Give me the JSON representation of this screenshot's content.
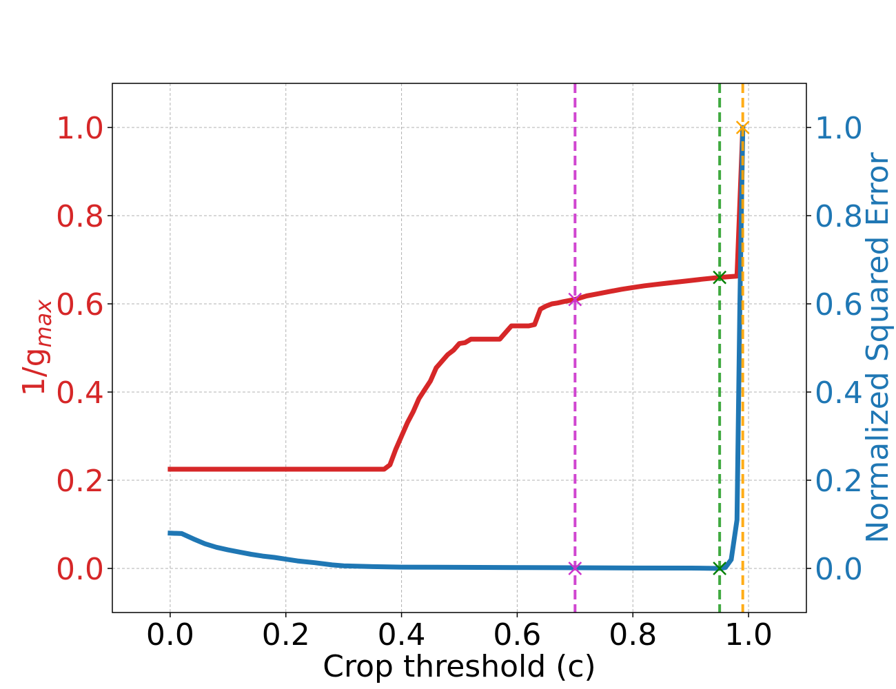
{
  "chart_data": {
    "type": "line",
    "xlabel": "Crop threshold (c)",
    "ylabel_left_base": "1/g",
    "ylabel_left_sub": "max",
    "ylabel_right": "Normalized Squared Error",
    "xlim": [
      -0.1,
      1.1
    ],
    "ylim_left": [
      -0.1,
      1.1
    ],
    "ylim_right": [
      -0.1,
      1.1
    ],
    "x_ticks": [
      "0.0",
      "0.2",
      "0.4",
      "0.6",
      "0.8",
      "1.0"
    ],
    "y_ticks_left": [
      "0.0",
      "0.2",
      "0.4",
      "0.6",
      "0.8",
      "1.0"
    ],
    "y_ticks_right": [
      "0.0",
      "0.2",
      "0.4",
      "0.6",
      "0.8",
      "1.0"
    ],
    "grid": true,
    "colors": {
      "left_axis": "#d62728",
      "right_axis": "#1f77b4",
      "magenta": "#cc33cc",
      "green": "#2ca02c",
      "orange": "#ffa500",
      "marker_green": "#008000"
    },
    "series": [
      {
        "axis": "left",
        "color": "#d62728",
        "x": [
          0.0,
          0.1,
          0.2,
          0.3,
          0.37,
          0.38,
          0.39,
          0.4,
          0.41,
          0.42,
          0.43,
          0.44,
          0.45,
          0.46,
          0.47,
          0.48,
          0.49,
          0.5,
          0.51,
          0.52,
          0.53,
          0.55,
          0.57,
          0.58,
          0.59,
          0.6,
          0.62,
          0.63,
          0.64,
          0.65,
          0.66,
          0.67,
          0.68,
          0.7,
          0.72,
          0.74,
          0.76,
          0.78,
          0.8,
          0.82,
          0.84,
          0.86,
          0.88,
          0.9,
          0.92,
          0.95,
          0.98,
          0.99
        ],
        "y": [
          0.225,
          0.225,
          0.225,
          0.225,
          0.225,
          0.235,
          0.27,
          0.3,
          0.33,
          0.355,
          0.385,
          0.405,
          0.425,
          0.455,
          0.47,
          0.485,
          0.495,
          0.51,
          0.512,
          0.52,
          0.52,
          0.52,
          0.52,
          0.535,
          0.55,
          0.55,
          0.55,
          0.553,
          0.588,
          0.595,
          0.6,
          0.602,
          0.605,
          0.61,
          0.618,
          0.623,
          0.628,
          0.633,
          0.637,
          0.641,
          0.644,
          0.647,
          0.65,
          0.653,
          0.656,
          0.66,
          0.663,
          1.0
        ]
      },
      {
        "axis": "right",
        "color": "#1f77b4",
        "x": [
          0.0,
          0.02,
          0.04,
          0.06,
          0.08,
          0.1,
          0.12,
          0.14,
          0.16,
          0.18,
          0.2,
          0.22,
          0.25,
          0.28,
          0.3,
          0.35,
          0.4,
          0.5,
          0.6,
          0.7,
          0.8,
          0.9,
          0.95,
          0.96,
          0.97,
          0.98,
          0.985,
          0.99
        ],
        "y": [
          0.08,
          0.079,
          0.067,
          0.056,
          0.048,
          0.042,
          0.037,
          0.032,
          0.028,
          0.025,
          0.021,
          0.017,
          0.013,
          0.008,
          0.006,
          0.004,
          0.003,
          0.0025,
          0.002,
          0.0015,
          0.001,
          0.0008,
          0.0,
          0.002,
          0.02,
          0.11,
          0.6,
          1.0
        ]
      }
    ],
    "vlines": [
      {
        "x": 0.7,
        "color": "#cc33cc"
      },
      {
        "x": 0.95,
        "color": "#2ca02c"
      },
      {
        "x": 0.99,
        "color": "#ffa500"
      }
    ],
    "markers": [
      {
        "x": 0.7,
        "y": 0.61,
        "color": "#cc33cc"
      },
      {
        "x": 0.7,
        "y": 0.0,
        "color": "#cc33cc"
      },
      {
        "x": 0.95,
        "y": 0.66,
        "color": "#008000"
      },
      {
        "x": 0.95,
        "y": 0.0,
        "color": "#008000"
      },
      {
        "x": 0.99,
        "y": 1.0,
        "color": "#ffa500"
      }
    ]
  }
}
